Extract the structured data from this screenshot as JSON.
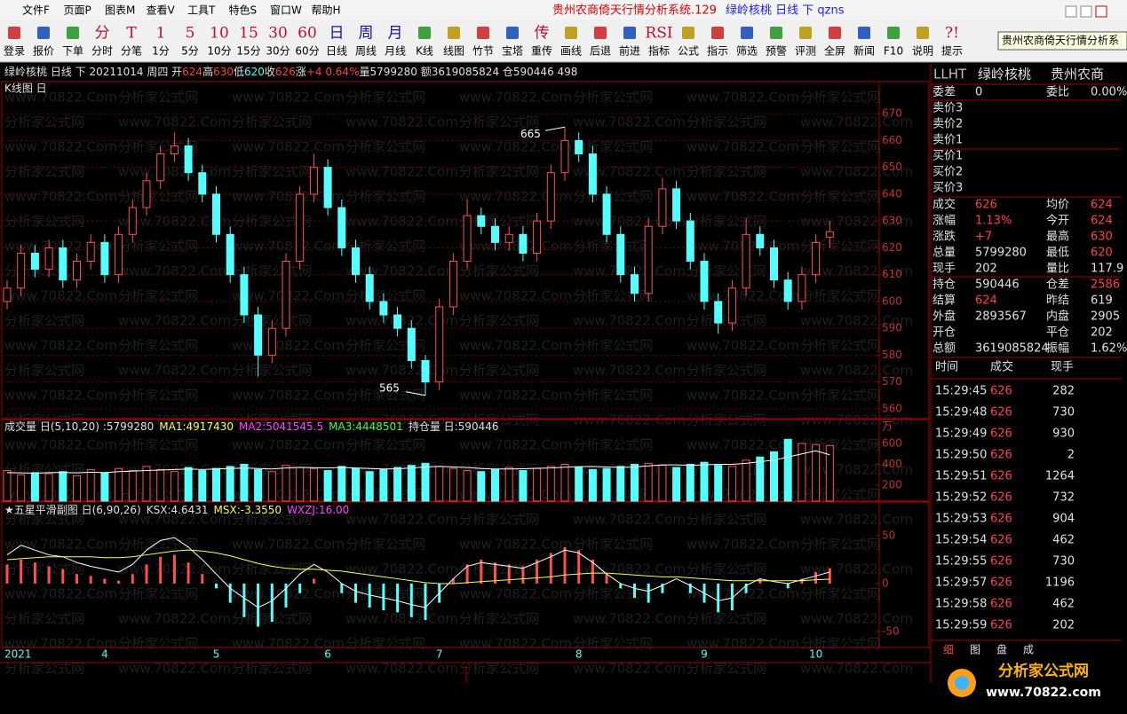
{
  "window": {
    "menu": [
      "文件F",
      "页面P",
      "图表M",
      "查看V",
      "工具T",
      "特色S",
      "窗口W",
      "帮助H"
    ],
    "title_red": "贵州农商倚天行情分析系统.129",
    "title_blue": "绿岭核桃 日线 下 qzns",
    "tooltip": "贵州农商倚天行情分析系"
  },
  "toolbar": [
    {
      "label": "登录"
    },
    {
      "label": "报价"
    },
    {
      "label": "下单"
    },
    {
      "icon": "分",
      "label": "分时"
    },
    {
      "icon": "T",
      "label": "分笔"
    },
    {
      "icon": "1",
      "label": "1分"
    },
    {
      "icon": "5",
      "label": "5分"
    },
    {
      "icon": "10",
      "label": "10分"
    },
    {
      "icon": "15",
      "label": "15分"
    },
    {
      "icon": "30",
      "label": "30分"
    },
    {
      "icon": "60",
      "label": "60分"
    },
    {
      "icon": "日",
      "label": "日线"
    },
    {
      "icon": "周",
      "label": "周线"
    },
    {
      "icon": "月",
      "label": "月线"
    },
    {
      "label": "K线"
    },
    {
      "label": "线图"
    },
    {
      "label": "竹节"
    },
    {
      "label": "宝塔"
    },
    {
      "icon": "传",
      "label": "重传"
    },
    {
      "label": "画线"
    },
    {
      "label": "后退"
    },
    {
      "label": "前进"
    },
    {
      "icon": "RSI",
      "label": "指标"
    },
    {
      "label": "公式"
    },
    {
      "label": "指示"
    },
    {
      "label": "筛选"
    },
    {
      "label": "预警"
    },
    {
      "label": "评测"
    },
    {
      "label": "全屏"
    },
    {
      "label": "新闻"
    },
    {
      "label": "F10"
    },
    {
      "label": "说明"
    },
    {
      "icon": "?!",
      "label": "提示"
    }
  ],
  "info_bar": [
    {
      "text": "绿岭核桃 日线 下 20211014 周四 开",
      "color": "#e0e0e0"
    },
    {
      "text": "624",
      "color": "#ff4040"
    },
    {
      "text": "高",
      "color": "#e0e0e0"
    },
    {
      "text": "630",
      "color": "#ff4040"
    },
    {
      "text": "低",
      "color": "#e0e0e0"
    },
    {
      "text": "620",
      "color": "#54ffff"
    },
    {
      "text": "收",
      "color": "#e0e0e0"
    },
    {
      "text": "626",
      "color": "#ff4040"
    },
    {
      "text": "涨",
      "color": "#e0e0e0"
    },
    {
      "text": "+4 0.64%",
      "color": "#ff4040"
    },
    {
      "text": "量5799280 额3619085824 仓590446 498",
      "color": "#e0e0e0"
    }
  ],
  "watermark": [
    "www.70822.Com",
    "分析家公式网"
  ],
  "chart_data": [
    {
      "type": "candlestick",
      "title": "K线图 日",
      "categories": [
        "2021",
        null,
        null,
        null,
        null,
        null,
        null,
        "4",
        null,
        null,
        null,
        null,
        null,
        null,
        null,
        "5",
        null,
        null,
        null,
        null,
        null,
        null,
        null,
        "6",
        null,
        null,
        null,
        null,
        null,
        null,
        null,
        "7",
        null,
        null,
        null,
        null,
        null,
        null,
        null,
        null,
        null,
        "8",
        null,
        null,
        null,
        null,
        null,
        null,
        null,
        null,
        "9",
        null,
        null,
        null,
        null,
        null,
        null,
        null,
        "10",
        null
      ],
      "open": [
        600,
        605,
        618,
        612,
        620,
        608,
        615,
        622,
        610,
        625,
        635,
        645,
        655,
        658,
        648,
        640,
        625,
        610,
        595,
        580,
        590,
        615,
        640,
        650,
        635,
        620,
        610,
        600,
        595,
        590,
        578,
        570,
        598,
        615,
        632,
        628,
        622,
        625,
        618,
        630,
        648,
        660,
        655,
        640,
        625,
        610,
        603,
        628,
        642,
        630,
        615,
        600,
        592,
        605,
        625,
        620,
        608,
        600,
        610,
        624
      ],
      "high": [
        608,
        621,
        621,
        623,
        623,
        618,
        625,
        625,
        628,
        638,
        648,
        658,
        663,
        661,
        651,
        643,
        628,
        613,
        598,
        593,
        618,
        643,
        655,
        653,
        638,
        623,
        613,
        603,
        598,
        593,
        580,
        601,
        618,
        638,
        635,
        631,
        628,
        628,
        633,
        651,
        665,
        663,
        658,
        643,
        628,
        613,
        631,
        646,
        645,
        633,
        618,
        603,
        608,
        631,
        628,
        623,
        611,
        613,
        625,
        630
      ],
      "low": [
        597,
        602,
        609,
        609,
        605,
        605,
        612,
        607,
        607,
        622,
        632,
        642,
        652,
        645,
        637,
        622,
        607,
        592,
        572,
        577,
        587,
        612,
        637,
        632,
        617,
        607,
        597,
        592,
        587,
        575,
        565,
        567,
        595,
        612,
        625,
        619,
        619,
        615,
        615,
        627,
        645,
        652,
        637,
        622,
        607,
        600,
        600,
        625,
        627,
        612,
        597,
        588,
        589,
        602,
        617,
        605,
        597,
        597,
        607,
        620
      ],
      "close": [
        605,
        618,
        612,
        620,
        608,
        615,
        622,
        610,
        625,
        635,
        645,
        655,
        658,
        648,
        640,
        625,
        610,
        595,
        580,
        590,
        615,
        640,
        650,
        635,
        620,
        610,
        600,
        595,
        590,
        578,
        570,
        598,
        615,
        632,
        628,
        622,
        625,
        618,
        630,
        648,
        660,
        655,
        640,
        625,
        610,
        603,
        628,
        642,
        630,
        615,
        600,
        592,
        605,
        625,
        620,
        608,
        600,
        610,
        622,
        626
      ],
      "up_color": "#ff5050",
      "down_color": "#54ffff",
      "ylim": [
        557,
        676
      ],
      "yticks": [
        560,
        570,
        580,
        590,
        600,
        610,
        620,
        630,
        640,
        650,
        660,
        670
      ],
      "grid": true
    },
    {
      "type": "bar",
      "title": [
        {
          "text": "成交量 日(5,10,20) :5799280",
          "color": "#e0e0e0"
        },
        {
          "text": "MA1:4917430",
          "color": "#ffff40"
        },
        {
          "text": "MA2:5041545.5",
          "color": "#ff40ff"
        },
        {
          "text": "MA3:4448501",
          "color": "#40ff40"
        },
        {
          "text": "持仓量 日:590446",
          "color": "#e0e0e0"
        }
      ],
      "unit": "万",
      "values": [
        340,
        300,
        320,
        310,
        330,
        290,
        350,
        320,
        360,
        340,
        380,
        350,
        330,
        370,
        340,
        360,
        380,
        400,
        350,
        330,
        390,
        370,
        360,
        340,
        380,
        360,
        330,
        350,
        370,
        390,
        410,
        380,
        360,
        340,
        330,
        350,
        370,
        340,
        360,
        380,
        400,
        370,
        350,
        360,
        380,
        400,
        410,
        390,
        370,
        400,
        420,
        390,
        380,
        440,
        470,
        520,
        640,
        600,
        590,
        579.928
      ],
      "series": [
        {
          "color": "#ffffff",
          "values": [
            320,
            318,
            315,
            320,
            322,
            318,
            325,
            320,
            330,
            335,
            340,
            345,
            350,
            355,
            350,
            355,
            360,
            365,
            360,
            355,
            365,
            370,
            368,
            365,
            370,
            365,
            360,
            355,
            358,
            365,
            375,
            380,
            375,
            370,
            360,
            355,
            355,
            358,
            362,
            365,
            372,
            378,
            380,
            375,
            370,
            375,
            385,
            395,
            395,
            390,
            395,
            400,
            400,
            410,
            425,
            440,
            470,
            500,
            530,
            491.743
          ]
        }
      ],
      "ylim": [
        47,
        685
      ],
      "yticks": [
        200,
        400,
        600
      ]
    },
    {
      "type": "histogram",
      "title": [
        {
          "text": "★五星平滑副图 日(6,90,26)",
          "color": "#e0e0e0"
        },
        {
          "text": "KSX:4.6431",
          "color": "#e0e0e0"
        },
        {
          "text": "MSX:-3.3550",
          "color": "#ffff40"
        },
        {
          "text": "WXZJ:16.00",
          "color": "#ff40ff"
        }
      ],
      "values": [
        20,
        25,
        22,
        18,
        15,
        10,
        8,
        5,
        3,
        10,
        20,
        28,
        30,
        22,
        10,
        -5,
        -20,
        -35,
        -45,
        -40,
        -25,
        -10,
        5,
        0,
        -10,
        -20,
        -25,
        -28,
        -30,
        -35,
        -38,
        -20,
        5,
        20,
        25,
        22,
        20,
        18,
        25,
        32,
        38,
        35,
        25,
        10,
        -5,
        -15,
        -20,
        -10,
        0,
        -10,
        -20,
        -30,
        -28,
        -10,
        5,
        0,
        -5,
        5,
        12,
        16
      ],
      "pos_color": "#ff5050",
      "neg_color": "#54ffff",
      "series": [
        {
          "color": "#ffffff",
          "values": [
            30,
            40,
            35,
            30,
            28,
            22,
            18,
            15,
            12,
            20,
            35,
            45,
            48,
            38,
            25,
            10,
            -5,
            -15,
            -25,
            -18,
            -5,
            10,
            20,
            12,
            0,
            -8,
            -12,
            -15,
            -18,
            -22,
            -25,
            -10,
            5,
            18,
            22,
            20,
            18,
            16,
            22,
            28,
            35,
            32,
            22,
            10,
            0,
            -5,
            -8,
            -2,
            5,
            -2,
            -10,
            -18,
            -15,
            -2,
            5,
            2,
            0,
            4,
            8,
            12
          ]
        },
        {
          "color": "#ffff40",
          "values": [
            25,
            26,
            27,
            28,
            28,
            28,
            28,
            27,
            27,
            28,
            30,
            32,
            34,
            35,
            34,
            32,
            29,
            25,
            21,
            18,
            16,
            15,
            15,
            14,
            13,
            11,
            9,
            7,
            5,
            3,
            1,
            0,
            0,
            1,
            2,
            3,
            4,
            5,
            6,
            7,
            9,
            10,
            11,
            11,
            10,
            9,
            8,
            7,
            7,
            6,
            5,
            4,
            3,
            3,
            3,
            3,
            3,
            3,
            4,
            4.6431
          ]
        }
      ],
      "ylim": [
        -66.7,
        83.3
      ],
      "yticks": [
        50,
        0,
        -50
      ]
    }
  ],
  "right_panel": {
    "header": [
      "LLHT",
      "绿岭核桃",
      "贵州农商"
    ],
    "rows": [
      [
        {
          "text": "委差"
        },
        {
          "text": "0"
        },
        {
          "text": "委比"
        },
        {
          "text": "0.00%"
        }
      ],
      [
        {
          "text": "卖价3"
        }
      ],
      [
        {
          "text": "卖价2"
        }
      ],
      [
        {
          "text": "卖价1"
        }
      ],
      [
        {
          "text": "买价1"
        }
      ],
      [
        {
          "text": "买价2"
        }
      ],
      [
        {
          "text": "买价3"
        }
      ],
      [
        {
          "text": "成交"
        },
        {
          "text": "626",
          "color": "#ff4040"
        },
        {
          "text": "均价"
        },
        {
          "text": "624",
          "color": "#ff4040"
        }
      ],
      [
        {
          "text": "涨幅"
        },
        {
          "text": "1.13%",
          "color": "#ff4040"
        },
        {
          "text": "今开"
        },
        {
          "text": "624",
          "color": "#ff4040"
        }
      ],
      [
        {
          "text": "涨跌"
        },
        {
          "text": "+7",
          "color": "#ff4040"
        },
        {
          "text": "最高"
        },
        {
          "text": "630",
          "color": "#ff4040"
        }
      ],
      [
        {
          "text": "总量"
        },
        {
          "text": "5799280"
        },
        {
          "text": "最低"
        },
        {
          "text": "620",
          "color": "#ff4040"
        }
      ],
      [
        {
          "text": "现手"
        },
        {
          "text": "202"
        },
        {
          "text": "量比"
        },
        {
          "text": "117.9"
        }
      ],
      [
        {
          "text": "持仓"
        },
        {
          "text": "590446"
        },
        {
          "text": "仓差"
        },
        {
          "text": "2586",
          "color": "#ff4040"
        }
      ],
      [
        {
          "text": "结算"
        },
        {
          "text": "624",
          "color": "#ff4040"
        },
        {
          "text": "昨结"
        },
        {
          "text": "619"
        }
      ],
      [
        {
          "text": "外盘"
        },
        {
          "text": "2893567"
        },
        {
          "text": "内盘"
        },
        {
          "text": "2905"
        }
      ],
      [
        {
          "text": "开仓"
        },
        null,
        {
          "text": "平仓"
        },
        {
          "text": "202"
        }
      ],
      [
        {
          "text": "总额"
        },
        {
          "text": "3619085824"
        },
        {
          "text": "振幅"
        },
        {
          "text": "1.62%"
        }
      ]
    ],
    "trade_header": [
      "时间",
      "成交",
      "现手"
    ],
    "trades": [
      [
        "15:29:45",
        "626",
        "282"
      ],
      [
        "15:29:48",
        "626",
        "730"
      ],
      [
        "15:29:49",
        "626",
        "930"
      ],
      [
        "15:29:50",
        "626",
        "2"
      ],
      [
        "15:29:51",
        "626",
        "1264"
      ],
      [
        "15:29:52",
        "626",
        "732"
      ],
      [
        "15:29:53",
        "626",
        "904"
      ],
      [
        "15:29:54",
        "626",
        "462"
      ],
      [
        "15:29:55",
        "626",
        "730"
      ],
      [
        "15:29:57",
        "626",
        "1196"
      ],
      [
        "15:29:58",
        "626",
        "462"
      ],
      [
        "15:29:59",
        "626",
        "202"
      ]
    ],
    "tabs": [
      "细",
      "图",
      "盘",
      "成"
    ]
  },
  "logo": {
    "name": "分析家公式网",
    "url": "www.70822.com"
  }
}
